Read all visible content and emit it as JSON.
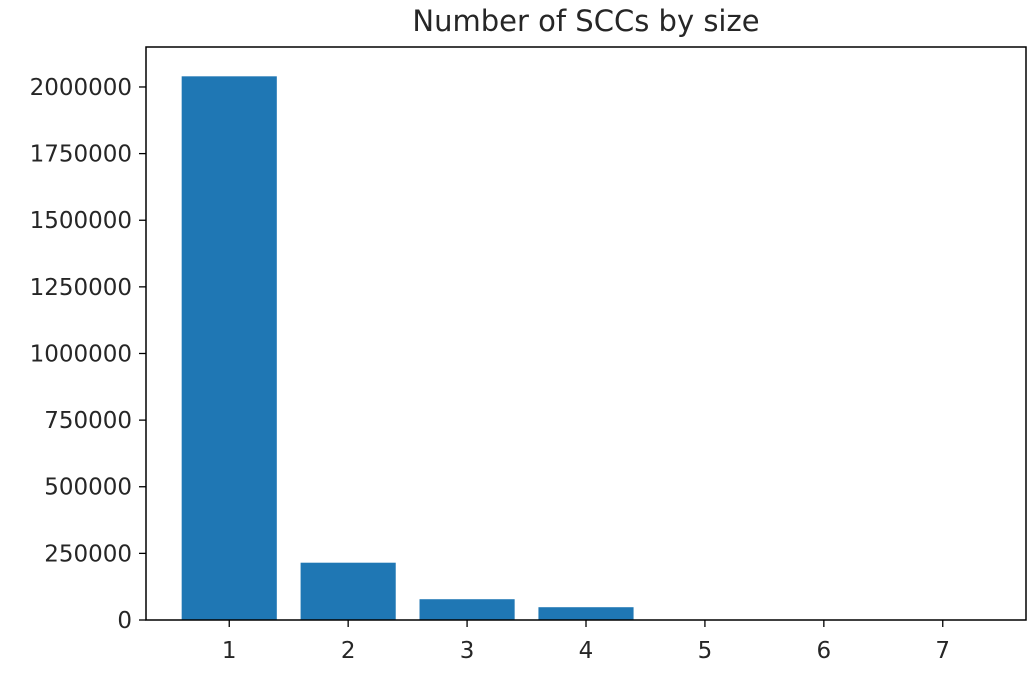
{
  "chart_data": {
    "type": "bar",
    "title": "Number of SCCs by size",
    "xlabel": "",
    "ylabel": "",
    "categories": [
      "1",
      "2",
      "3",
      "4",
      "5",
      "6",
      "7"
    ],
    "values": [
      2040000,
      215000,
      78000,
      48000,
      1200,
      600,
      300
    ],
    "ylim": [
      0,
      2150000
    ],
    "xlim": [
      0.3,
      7.7
    ],
    "yticks": [
      0,
      250000,
      500000,
      750000,
      1000000,
      1250000,
      1500000,
      1750000,
      2000000
    ],
    "ytick_labels": [
      "0",
      "250000",
      "500000",
      "750000",
      "1000000",
      "1250000",
      "1500000",
      "1750000",
      "2000000"
    ],
    "grid": false,
    "legend": "none",
    "bar_color": "#1f77b4"
  }
}
